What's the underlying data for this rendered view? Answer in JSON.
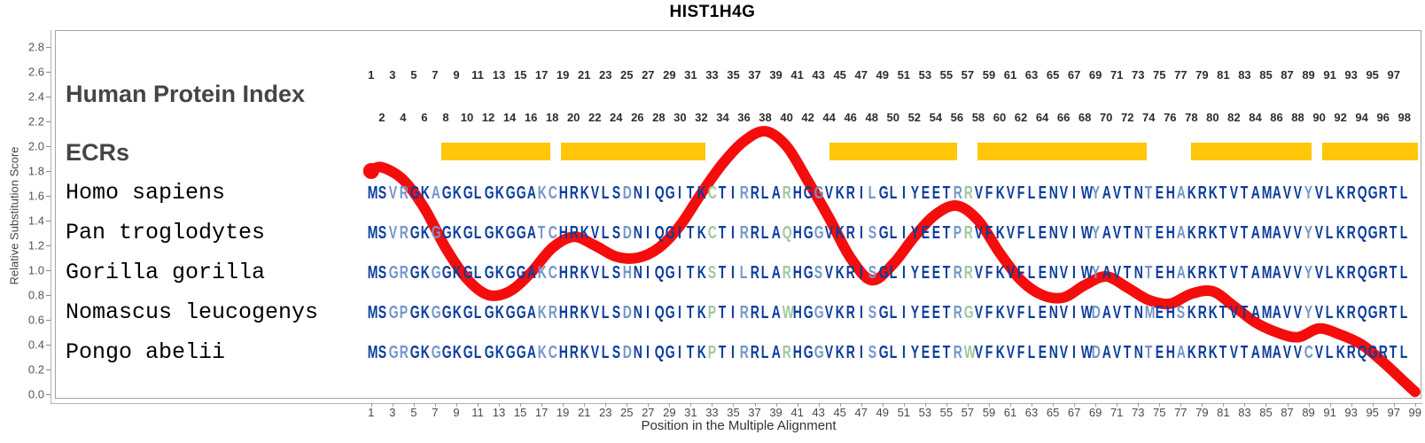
{
  "title": "HIST1H4G",
  "y_axis": {
    "label": "Relative Substitution Score",
    "tick_labels": [
      "0.0",
      "0.2",
      "0.4",
      "0.6",
      "0.8",
      "1.0",
      "1.2",
      "1.4",
      "1.6",
      "1.8",
      "2.0",
      "2.2",
      "2.4",
      "2.6",
      "2.8"
    ]
  },
  "x_axis": {
    "label": "Position in the Multiple Alignment",
    "tick_labels": [
      1,
      3,
      5,
      7,
      9,
      11,
      13,
      15,
      17,
      19,
      21,
      23,
      25,
      27,
      29,
      31,
      33,
      35,
      37,
      39,
      41,
      43,
      45,
      47,
      49,
      51,
      53,
      55,
      57,
      59,
      61,
      63,
      65,
      67,
      69,
      71,
      73,
      75,
      77,
      79,
      81,
      83,
      85,
      87,
      89,
      91,
      93,
      95,
      97,
      99
    ]
  },
  "header_rows": {
    "protein_index_label": "Human Protein Index",
    "odd_indices": [
      1,
      3,
      5,
      7,
      9,
      11,
      13,
      15,
      17,
      19,
      21,
      23,
      25,
      27,
      29,
      31,
      33,
      35,
      37,
      39,
      41,
      43,
      45,
      47,
      49,
      51,
      53,
      55,
      57,
      59,
      61,
      63,
      65,
      67,
      69,
      71,
      73,
      75,
      77,
      79,
      81,
      83,
      85,
      87,
      89,
      91,
      93,
      95,
      97
    ],
    "even_indices": [
      2,
      4,
      6,
      8,
      10,
      12,
      14,
      16,
      18,
      20,
      22,
      24,
      26,
      28,
      30,
      32,
      34,
      36,
      38,
      40,
      42,
      44,
      46,
      48,
      50,
      52,
      54,
      56,
      58,
      60,
      62,
      64,
      66,
      68,
      70,
      72,
      74,
      76,
      78,
      80,
      82,
      84,
      86,
      88,
      90,
      92,
      94,
      96,
      98
    ]
  },
  "ecr": {
    "label": "ECRs",
    "color": "#ffc60a",
    "bars": [
      {
        "start": 7.6,
        "end": 17.85
      },
      {
        "start": 18.85,
        "end": 32.4
      },
      {
        "start": 44.0,
        "end": 56.0
      },
      {
        "start": 57.9,
        "end": 73.8
      },
      {
        "start": 78.0,
        "end": 89.3
      },
      {
        "start": 90.3,
        "end": 99.3
      }
    ]
  },
  "alignment": {
    "colors": {
      "0": "#0c3d9c",
      "1": "#7496c8",
      "2": "#9fc99f"
    },
    "conservation_classes": "00110010000000001100000010000000200100020010000100000001200000000000100001001000000000001000000000",
    "species": [
      {
        "name": "Homo sapiens",
        "sequence": "MSVRGKAGKGLGKGGAKCHRKVLSDNIQGITKCTIRRLARHGGVKRILGLIYEETRRVFKVFLENVIWYAVTNTEHAKRKTVTAMAVVYVLKRQGRTL"
      },
      {
        "name": "Pan troglodytes",
        "sequence": "MSVRGKGGKGLGKGGATCHRKVLSDNIQGITKCTIRRLAQHGGVKRISGLIYEETPRVFKVFLENVIWYAVTNTEHAKRKTVTAMAVVYVLKRQGRTL"
      },
      {
        "name": "Gorilla gorilla",
        "sequence": "MSGRGKGGKGLGKGGAKCHRKVLSHNIQGITKSTILRLARHGSVKRISGLIYEETRRVFKVFLENVIWYAVTNTEHAKRKTVTAMAVVYVLKRQGRTL"
      },
      {
        "name": "Nomascus leucogenys",
        "sequence": "MSGPGKGGKGLGKGGAKRHRKVLSDNIQGITKPTIRRLAWHGGVKRISGLIYEETRGVFKVFLENVIWDAVTNMEHSKRKTVTAMAVVYVLKRQGRTL"
      },
      {
        "name": "Pongo abelii",
        "sequence": "MSGRGKGGKGLGKGGAKCHRKVLSDNIQGITKPTIRRLARHGGVKRISGLIYEETRWVFKVFLENVIWDAVTNTEHAKRKTVTAMAVVCVLKRQGRTL"
      }
    ]
  },
  "curve": {
    "color": "#f50d0d"
  },
  "chart_data": {
    "type": "line",
    "title": "HIST1H4G",
    "xlabel": "Position in the Multiple Alignment",
    "ylabel": "Relative Substitution Score",
    "xlim": [
      1,
      99
    ],
    "ylim": [
      0.0,
      2.8
    ],
    "grid": false,
    "legend_position": "none",
    "series": [
      {
        "name": "relative-substitution-score",
        "x": [
          1,
          2,
          4,
          6,
          8,
          10,
          12,
          14,
          16,
          18,
          20,
          22,
          24,
          26,
          28,
          30,
          32,
          34,
          36,
          38,
          40,
          42,
          44,
          46,
          48,
          50,
          52,
          54,
          56,
          58,
          60,
          62,
          64,
          66,
          68,
          70,
          72,
          74,
          76,
          78,
          80,
          82,
          84,
          86,
          88,
          90,
          92,
          94,
          96,
          98,
          99
        ],
        "y": [
          1.8,
          1.83,
          1.73,
          1.5,
          1.18,
          0.93,
          0.8,
          0.83,
          0.98,
          1.18,
          1.27,
          1.2,
          1.11,
          1.1,
          1.18,
          1.36,
          1.62,
          1.86,
          2.04,
          2.12,
          2.0,
          1.72,
          1.42,
          1.1,
          0.92,
          1.05,
          1.27,
          1.45,
          1.52,
          1.4,
          1.14,
          0.92,
          0.8,
          0.78,
          0.88,
          0.95,
          0.86,
          0.76,
          0.73,
          0.81,
          0.83,
          0.71,
          0.58,
          0.5,
          0.46,
          0.53,
          0.48,
          0.4,
          0.26,
          0.1,
          0.02
        ]
      }
    ],
    "ecr_regions": [
      [
        7.6,
        17.85
      ],
      [
        18.85,
        32.4
      ],
      [
        44.0,
        56.0
      ],
      [
        57.9,
        73.8
      ],
      [
        78.0,
        89.3
      ],
      [
        90.3,
        99.3
      ]
    ]
  }
}
